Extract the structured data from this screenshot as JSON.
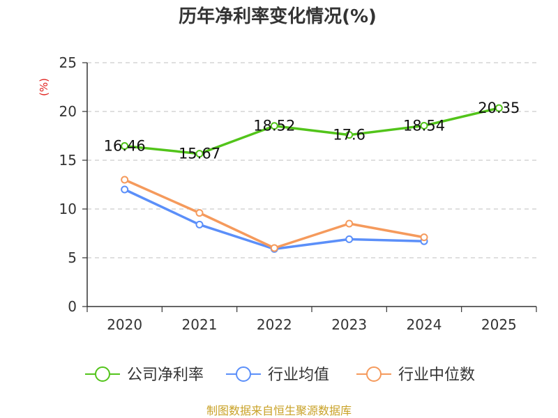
{
  "chart_data": {
    "type": "line",
    "title": "历年净利率变化情况(%)",
    "ylabel": "(%)",
    "xlabel": "",
    "categories": [
      "2020",
      "2021",
      "2022",
      "2023",
      "2024",
      "2025"
    ],
    "ylim": [
      0,
      25
    ],
    "yticks": [
      0,
      5,
      10,
      15,
      20,
      25
    ],
    "grid": true,
    "legend": "bottom",
    "series": [
      {
        "name": "公司净利率",
        "color": "#52C41A",
        "show_labels": true,
        "values": [
          16.46,
          15.67,
          18.52,
          17.6,
          18.54,
          20.35
        ]
      },
      {
        "name": "行业均值",
        "color": "#5B8FF9",
        "show_labels": false,
        "values": [
          12.0,
          8.4,
          5.9,
          6.9,
          6.7,
          null
        ]
      },
      {
        "name": "行业中位数",
        "color": "#F59A5C",
        "show_labels": false,
        "values": [
          13.0,
          9.6,
          6.0,
          8.5,
          7.1,
          null
        ]
      }
    ]
  },
  "source": "制图数据来自恒生聚源数据库",
  "colors": {
    "axis": "#333333",
    "grid": "#cccccc",
    "ylabel": "#e0201c",
    "source": "#c9a227"
  }
}
